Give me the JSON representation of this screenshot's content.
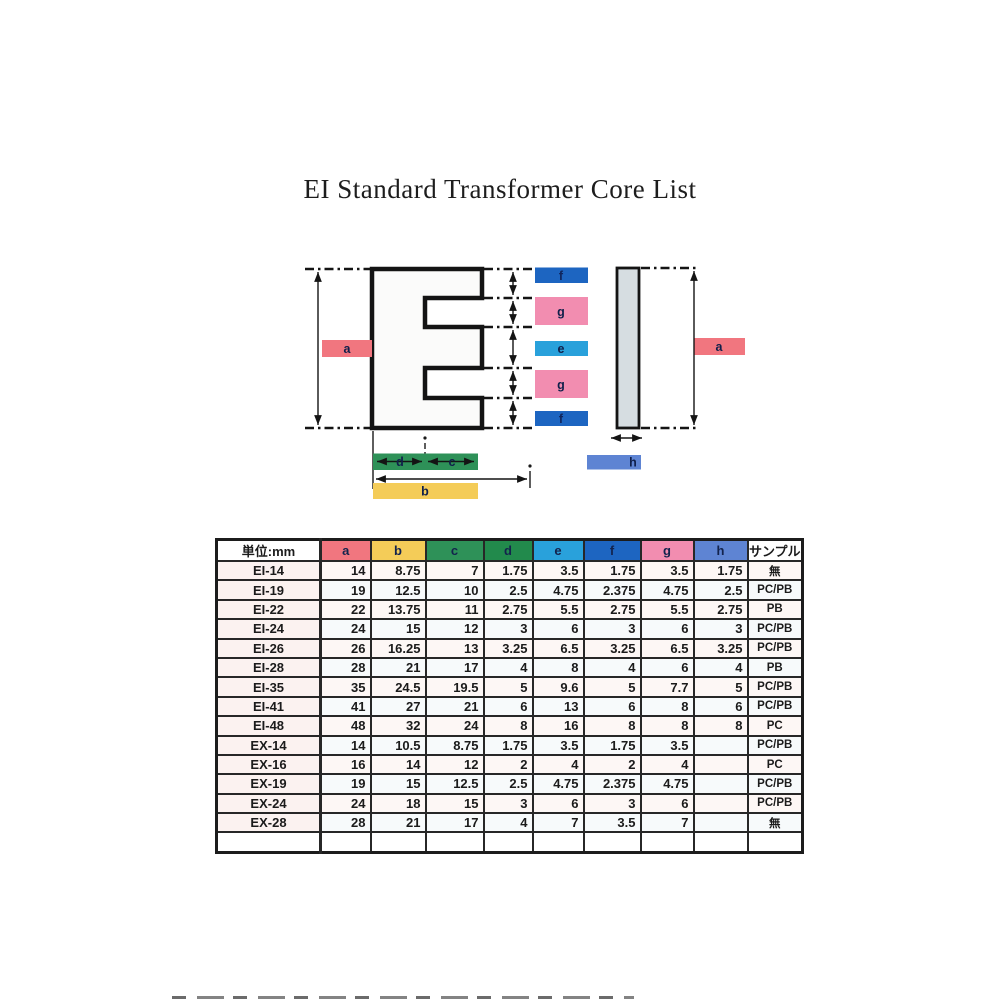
{
  "page": {
    "title": "EI Standard Transformer Core List"
  },
  "diagram": {
    "dim_labels": {
      "a": "a",
      "b": "b",
      "c": "c",
      "d": "d",
      "e": "e",
      "f": "f",
      "g": "g",
      "h": "h"
    },
    "colors": {
      "a": "#f1767f",
      "b": "#f4cc58",
      "c_d_green": "#2e9158",
      "e": "#29a1db",
      "f": "#1d65c1",
      "g": "#f28db0",
      "h": "#5e84d3",
      "i_core_fill": "#d6dde1",
      "line": "#141414"
    }
  },
  "table": {
    "unit_header": "単位:mm",
    "sample_header": "サンプル",
    "columns": [
      {
        "key": "a",
        "color": "#f1767f"
      },
      {
        "key": "b",
        "color": "#f4cc58"
      },
      {
        "key": "c",
        "color": "#2e9158"
      },
      {
        "key": "d",
        "color": "#228a4c"
      },
      {
        "key": "e",
        "color": "#29a1db"
      },
      {
        "key": "f",
        "color": "#1d65c1"
      },
      {
        "key": "g",
        "color": "#f28db0"
      },
      {
        "key": "h",
        "color": "#5e84d3"
      }
    ],
    "rows": [
      {
        "name": "EI-14",
        "values": [
          "14",
          "8.75",
          "7",
          "1.75",
          "3.5",
          "1.75",
          "3.5",
          "1.75"
        ],
        "sample": "無"
      },
      {
        "name": "EI-19",
        "values": [
          "19",
          "12.5",
          "10",
          "2.5",
          "4.75",
          "2.375",
          "4.75",
          "2.5"
        ],
        "sample": "PC/PB"
      },
      {
        "name": "EI-22",
        "values": [
          "22",
          "13.75",
          "11",
          "2.75",
          "5.5",
          "2.75",
          "5.5",
          "2.75"
        ],
        "sample": "PB"
      },
      {
        "name": "EI-24",
        "values": [
          "24",
          "15",
          "12",
          "3",
          "6",
          "3",
          "6",
          "3"
        ],
        "sample": "PC/PB"
      },
      {
        "name": "EI-26",
        "values": [
          "26",
          "16.25",
          "13",
          "3.25",
          "6.5",
          "3.25",
          "6.5",
          "3.25"
        ],
        "sample": "PC/PB"
      },
      {
        "name": "EI-28",
        "values": [
          "28",
          "21",
          "17",
          "4",
          "8",
          "4",
          "6",
          "4"
        ],
        "sample": "PB"
      },
      {
        "name": "EI-35",
        "values": [
          "35",
          "24.5",
          "19.5",
          "5",
          "9.6",
          "5",
          "7.7",
          "5"
        ],
        "sample": "PC/PB"
      },
      {
        "name": "EI-41",
        "values": [
          "41",
          "27",
          "21",
          "6",
          "13",
          "6",
          "8",
          "6"
        ],
        "sample": "PC/PB"
      },
      {
        "name": "EI-48",
        "values": [
          "48",
          "32",
          "24",
          "8",
          "16",
          "8",
          "8",
          "8"
        ],
        "sample": "PC"
      },
      {
        "name": "EX-14",
        "values": [
          "14",
          "10.5",
          "8.75",
          "1.75",
          "3.5",
          "1.75",
          "3.5",
          ""
        ],
        "sample": "PC/PB"
      },
      {
        "name": "EX-16",
        "values": [
          "16",
          "14",
          "12",
          "2",
          "4",
          "2",
          "4",
          ""
        ],
        "sample": "PC"
      },
      {
        "name": "EX-19",
        "values": [
          "19",
          "15",
          "12.5",
          "2.5",
          "4.75",
          "2.375",
          "4.75",
          ""
        ],
        "sample": "PC/PB"
      },
      {
        "name": "EX-24",
        "values": [
          "24",
          "18",
          "15",
          "3",
          "6",
          "3",
          "6",
          ""
        ],
        "sample": "PC/PB"
      },
      {
        "name": "EX-28",
        "values": [
          "28",
          "21",
          "17",
          "4",
          "7",
          "3.5",
          "7",
          ""
        ],
        "sample": "無"
      }
    ],
    "empty_row": true
  }
}
